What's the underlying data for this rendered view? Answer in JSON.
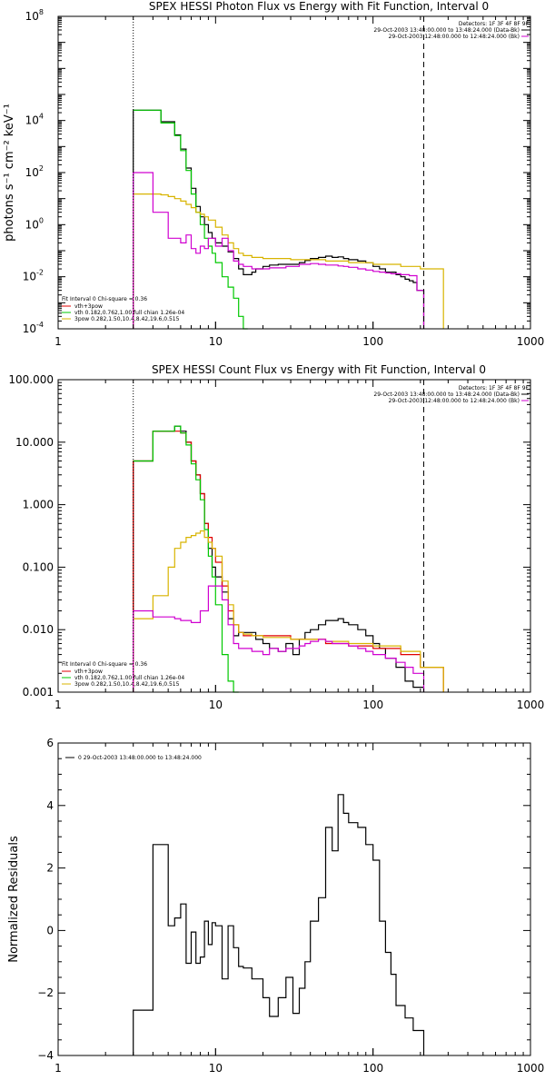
{
  "colors": {
    "data": "#000000",
    "total": "#e00000",
    "thermal": "#00c800",
    "powerlaw": "#d8b400",
    "background": "#d000d0",
    "page": "#ffffff"
  },
  "chart_data": [
    {
      "type": "line",
      "title": "SPEX HESSI Photon Flux vs Energy with Fit Function, Interval 0",
      "ylabel": "photons s⁻¹ cm⁻² keV⁻¹",
      "xlabel": "",
      "xscale": "log",
      "yscale": "log",
      "xlim": [
        1,
        1000
      ],
      "ylim": [
        0.0001,
        100000000
      ],
      "xticks": [
        "1",
        "10",
        "100",
        "1000"
      ],
      "yticks": [
        {
          "value": 0.0001,
          "label": "10",
          "exp": "-4"
        },
        {
          "value": 0.01,
          "label": "10",
          "exp": "-2"
        },
        {
          "value": 1,
          "label": "10",
          "exp": "0"
        },
        {
          "value": 100,
          "label": "10",
          "exp": "2"
        },
        {
          "value": 10000,
          "label": "10",
          "exp": "4"
        },
        {
          "value": 100000000,
          "label": "10",
          "exp": "8"
        }
      ],
      "vlines": [
        {
          "x": 3,
          "style": "dotted"
        },
        {
          "x": 210,
          "style": "dashed"
        }
      ],
      "header": {
        "detectors": "Detectors: 1F 3F 4F 8F 9F",
        "data_interval": "29-Oct-2003 13:48:00.000 to 13:48:24.000 (Data-Bk)",
        "bk_interval": "29-Oct-2003 12:48:00.000 to 12:48:24.000 (Bk)"
      },
      "legend": {
        "position": "bottom-left",
        "title": "Fit Interval 0   Chi-square = 0.36",
        "entries": [
          "vth+3pow",
          "vth 0.182,0.762,1.00  full chian 1.26e-04",
          "3pow 0.282,1.50,10.4,8.42,19.6,0.515"
        ]
      },
      "series": [
        {
          "color": "#000000",
          "step": true,
          "drop_to_bottom": true,
          "x": [
            3,
            3.5,
            4,
            4.5,
            5,
            5.5,
            6,
            6.5,
            7,
            7.5,
            8,
            8.5,
            9,
            9.5,
            10,
            11,
            12,
            13,
            14,
            15,
            16,
            17,
            18,
            20,
            22,
            25,
            28,
            31,
            34,
            37,
            40,
            45,
            50,
            55,
            60,
            65,
            70,
            80,
            90,
            100,
            110,
            120,
            130,
            140,
            150,
            160,
            170,
            180,
            190,
            210
          ],
          "y": [
            25000,
            25000,
            25000,
            9000,
            9000,
            2800,
            800,
            150,
            25,
            5,
            2,
            1,
            0.5,
            0.3,
            0.2,
            0.15,
            0.09,
            0.05,
            0.02,
            0.012,
            0.012,
            0.015,
            0.02,
            0.025,
            0.028,
            0.03,
            0.03,
            0.03,
            0.035,
            0.042,
            0.05,
            0.055,
            0.062,
            0.055,
            0.058,
            0.05,
            0.045,
            0.04,
            0.035,
            0.025,
            0.02,
            0.015,
            0.015,
            0.012,
            0.01,
            0.008,
            0.007,
            0.006,
            0.003,
            0.0001
          ]
        },
        {
          "color": "#00c800",
          "step": true,
          "drop_to_bottom": false,
          "x": [
            3,
            3.5,
            4,
            4.5,
            5,
            5.5,
            6,
            6.5,
            7,
            7.5,
            8,
            8.5,
            9,
            9.5,
            10,
            11,
            12,
            13,
            14,
            15,
            16
          ],
          "y": [
            25000,
            25000,
            25000,
            8000,
            8000,
            2600,
            700,
            120,
            15,
            3,
            1,
            0.3,
            0.15,
            0.08,
            0.035,
            0.01,
            0.004,
            0.0015,
            0.0003,
            9e-05,
            9e-05
          ]
        },
        {
          "color": "#d8b400",
          "step": true,
          "drop_to_bottom": true,
          "x": [
            3,
            3.5,
            4,
            4.5,
            5,
            5.5,
            6,
            6.5,
            7,
            7.5,
            8,
            8.5,
            9,
            10,
            11,
            12,
            13,
            14,
            15,
            17,
            20,
            30,
            50,
            70,
            100,
            150,
            200,
            280
          ],
          "y": [
            15,
            15,
            15,
            14,
            12,
            10,
            8,
            6,
            4.5,
            3,
            2.5,
            2,
            1.5,
            0.8,
            0.4,
            0.2,
            0.12,
            0.08,
            0.065,
            0.055,
            0.05,
            0.045,
            0.04,
            0.035,
            0.03,
            0.025,
            0.02,
            0.015
          ]
        },
        {
          "color": "#d000d0",
          "step": true,
          "drop_to_bottom": true,
          "x": [
            3,
            3.5,
            4,
            4.5,
            5,
            5.5,
            6,
            6.5,
            7,
            7.5,
            8,
            8.5,
            9,
            9.5,
            10,
            11,
            12,
            13,
            14,
            15,
            17,
            20,
            22,
            25,
            28,
            31,
            34,
            37,
            40,
            45,
            50,
            55,
            60,
            65,
            70,
            80,
            90,
            100,
            110,
            120,
            130,
            150,
            170,
            190,
            210
          ],
          "y": [
            100,
            100,
            3,
            3,
            0.3,
            0.3,
            0.2,
            0.4,
            0.12,
            0.08,
            0.15,
            0.12,
            0.3,
            0.3,
            0.15,
            0.3,
            0.1,
            0.04,
            0.03,
            0.025,
            0.02,
            0.02,
            0.022,
            0.022,
            0.025,
            0.025,
            0.03,
            0.03,
            0.032,
            0.03,
            0.028,
            0.028,
            0.026,
            0.025,
            0.023,
            0.02,
            0.018,
            0.016,
            0.015,
            0.014,
            0.013,
            0.012,
            0.011,
            0.003,
            0.0001
          ]
        }
      ]
    },
    {
      "type": "line",
      "title": "SPEX HESSI Count Flux vs Energy with Fit Function, Interval 0",
      "ylabel": "",
      "xlabel": "",
      "xscale": "log",
      "yscale": "log",
      "xlim": [
        1,
        1000
      ],
      "ylim": [
        0.001,
        100
      ],
      "xticks": [
        "1",
        "10",
        "100",
        "1000"
      ],
      "yticks": [
        {
          "value": 0.001,
          "label": "0.001"
        },
        {
          "value": 0.01,
          "label": "0.010"
        },
        {
          "value": 0.1,
          "label": "0.100"
        },
        {
          "value": 1,
          "label": "1.000"
        },
        {
          "value": 10,
          "label": "10.000"
        },
        {
          "value": 100,
          "label": "100.000"
        }
      ],
      "vlines": [
        {
          "x": 3,
          "style": "dotted"
        },
        {
          "x": 210,
          "style": "dashed"
        }
      ],
      "header": {
        "detectors": "Detectors: 1F 3F 4F 8F 9F",
        "data_interval": "29-Oct-2003 13:48:00.000 to 13:48:24.000 (Data-Bk)",
        "bk_interval": "29-Oct-2003 12:48:00.000 to 12:48:24.000 (Bk)"
      },
      "legend": {
        "position": "bottom-left",
        "title": "Fit Interval 0   Chi-square = 0.36",
        "entries": [
          "vth+3pow",
          "vth 0.182,0.762,1.00  full chian 1.26e-04",
          "3pow 0.282,1.50,10.4,8.42,19.6,0.515"
        ]
      },
      "series": [
        {
          "color": "#000000",
          "step": true,
          "drop_to_bottom": true,
          "x": [
            3,
            4,
            5,
            5.5,
            6,
            6.5,
            7,
            7.5,
            8,
            8.5,
            9,
            9.5,
            10,
            11,
            12,
            13,
            14,
            16,
            18,
            20,
            22,
            25,
            28,
            31,
            34,
            37,
            40,
            45,
            50,
            55,
            60,
            65,
            70,
            80,
            90,
            100,
            110,
            120,
            140,
            160,
            180,
            210
          ],
          "y": [
            5,
            15,
            15,
            18,
            15,
            10,
            5,
            3,
            1.5,
            0.5,
            0.2,
            0.1,
            0.07,
            0.04,
            0.015,
            0.008,
            0.009,
            0.009,
            0.007,
            0.006,
            0.005,
            0.0045,
            0.006,
            0.004,
            0.007,
            0.009,
            0.01,
            0.012,
            0.014,
            0.014,
            0.015,
            0.013,
            0.012,
            0.01,
            0.008,
            0.006,
            0.005,
            0.0035,
            0.0025,
            0.0015,
            0.0012,
            0.001
          ]
        },
        {
          "color": "#e00000",
          "step": true,
          "drop_to_bottom": true,
          "x": [
            3,
            4,
            5,
            6,
            6.5,
            7,
            7.5,
            8,
            8.5,
            9,
            9.5,
            10,
            11,
            12,
            13,
            14,
            15,
            17,
            20,
            30,
            50,
            70,
            100,
            150,
            200,
            280
          ],
          "y": [
            5,
            15,
            15,
            14,
            10,
            5,
            3,
            1.5,
            0.5,
            0.3,
            0.2,
            0.12,
            0.05,
            0.02,
            0.012,
            0.009,
            0.008,
            0.008,
            0.008,
            0.007,
            0.006,
            0.0055,
            0.005,
            0.004,
            0.0025,
            0.0015
          ]
        },
        {
          "color": "#00c800",
          "step": true,
          "drop_to_bottom": false,
          "x": [
            3,
            4,
            5,
            5.5,
            6,
            6.5,
            7,
            7.5,
            8,
            8.5,
            9,
            9.5,
            10,
            11,
            12,
            13,
            14
          ],
          "y": [
            5,
            15,
            15,
            18,
            14,
            9,
            4.5,
            2.5,
            1.2,
            0.4,
            0.15,
            0.07,
            0.025,
            0.004,
            0.0015,
            0.0006,
            0.0006
          ]
        },
        {
          "color": "#d8b400",
          "step": true,
          "drop_to_bottom": true,
          "x": [
            3,
            4,
            5,
            5.5,
            6,
            6.5,
            7,
            7.5,
            8,
            8.5,
            9,
            9.5,
            10,
            11,
            12,
            13,
            14,
            15,
            17,
            20,
            30,
            50,
            70,
            100,
            150,
            200,
            280
          ],
          "y": [
            0.015,
            0.035,
            0.1,
            0.2,
            0.25,
            0.3,
            0.32,
            0.35,
            0.38,
            0.3,
            0.25,
            0.2,
            0.15,
            0.06,
            0.025,
            0.012,
            0.009,
            0.0085,
            0.008,
            0.0075,
            0.007,
            0.0065,
            0.006,
            0.0055,
            0.0045,
            0.0025,
            0.0015
          ]
        },
        {
          "color": "#d000d0",
          "step": true,
          "drop_to_bottom": true,
          "x": [
            3,
            4,
            5,
            5.5,
            6,
            7,
            8,
            9,
            10,
            11,
            12,
            13,
            14,
            15,
            17,
            20,
            22,
            25,
            28,
            31,
            34,
            37,
            40,
            45,
            50,
            55,
            60,
            70,
            80,
            90,
            100,
            120,
            140,
            160,
            180,
            210
          ],
          "y": [
            0.02,
            0.016,
            0.016,
            0.015,
            0.014,
            0.013,
            0.02,
            0.05,
            0.05,
            0.03,
            0.012,
            0.006,
            0.005,
            0.005,
            0.0045,
            0.004,
            0.005,
            0.0045,
            0.005,
            0.005,
            0.0055,
            0.006,
            0.0065,
            0.007,
            0.0065,
            0.006,
            0.006,
            0.0055,
            0.005,
            0.0045,
            0.004,
            0.0035,
            0.003,
            0.0025,
            0.002,
            0.001
          ]
        }
      ]
    },
    {
      "type": "line",
      "title": "",
      "ylabel": "Normalized Residuals",
      "xlabel": "",
      "xscale": "log",
      "yscale": "linear",
      "xlim": [
        1,
        1000
      ],
      "ylim": [
        -4,
        6
      ],
      "xticks": [
        "1",
        "10",
        "100",
        "1000"
      ],
      "yticks": [
        {
          "value": -4,
          "label": "−4"
        },
        {
          "value": -2,
          "label": "−2"
        },
        {
          "value": 0,
          "label": "0"
        },
        {
          "value": 2,
          "label": "2"
        },
        {
          "value": 4,
          "label": "4"
        },
        {
          "value": 6,
          "label": "6"
        }
      ],
      "legend": {
        "position": "top-left",
        "entries": [
          "0  29-Oct-2003 13:48:00.000 to 13:48:24.000"
        ]
      },
      "series": [
        {
          "color": "#000000",
          "step": true,
          "drop_to_bottom": true,
          "x": [
            3,
            4,
            4.5,
            5,
            5.5,
            6,
            6.5,
            7,
            7.5,
            8,
            8.5,
            9,
            9.5,
            10,
            11,
            12,
            13,
            14,
            15,
            17,
            20,
            22,
            25,
            28,
            31,
            34,
            37,
            40,
            45,
            50,
            55,
            60,
            65,
            70,
            80,
            90,
            100,
            110,
            120,
            130,
            140,
            160,
            180,
            210
          ],
          "y": [
            -2.55,
            2.75,
            2.75,
            0.15,
            0.4,
            0.85,
            -1.05,
            -0.05,
            -1.05,
            -0.85,
            0.3,
            -0.45,
            0.25,
            0.15,
            -1.55,
            0.15,
            -0.55,
            -1.15,
            -1.2,
            -1.55,
            -2.15,
            -2.75,
            -2.15,
            -1.5,
            -2.65,
            -1.85,
            -1.0,
            0.3,
            1.05,
            3.3,
            2.55,
            4.35,
            3.75,
            3.45,
            3.3,
            2.75,
            2.25,
            0.3,
            -0.7,
            -1.4,
            -2.4,
            -2.8,
            -3.2,
            -4
          ]
        }
      ]
    }
  ]
}
